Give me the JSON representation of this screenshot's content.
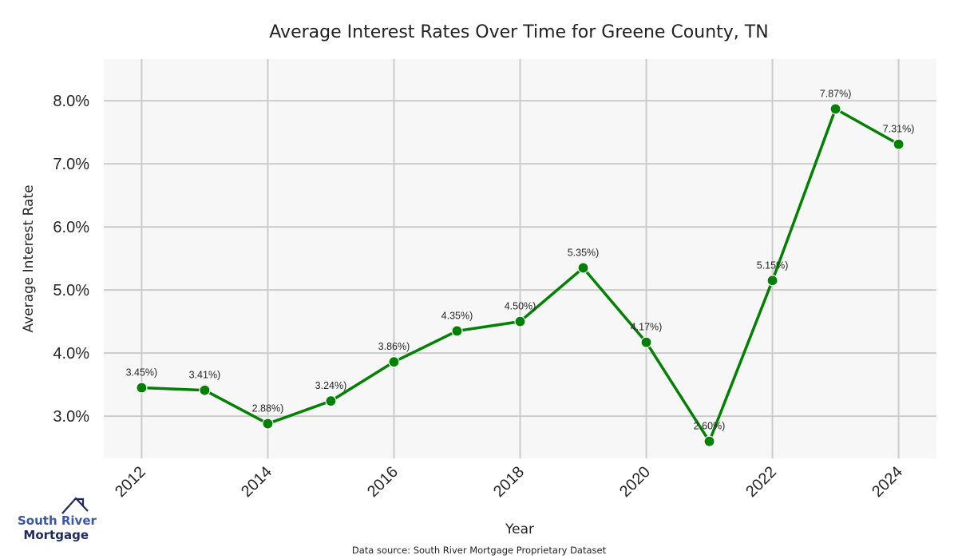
{
  "chart_data": {
    "type": "line",
    "title": "Average Interest Rates Over Time for Greene County, TN",
    "xlabel": "Year",
    "ylabel": "Average Interest Rate",
    "x": [
      2012,
      2013,
      2014,
      2015,
      2016,
      2017,
      2018,
      2019,
      2020,
      2021,
      2022,
      2023,
      2024
    ],
    "series": [
      {
        "name": "Average Interest Rate",
        "color": "#008000",
        "values": [
          3.45,
          3.41,
          2.88,
          3.24,
          3.86,
          4.35,
          4.5,
          5.35,
          4.17,
          2.6,
          5.15,
          7.87,
          7.31
        ],
        "labels": [
          "3.45%)",
          "3.41%)",
          "2.88%)",
          "3.24%)",
          "3.86%)",
          "4.35%)",
          "4.50%)",
          "5.35%)",
          "4.17%)",
          "2.60%)",
          "5.15%)",
          "7.87%)",
          "7.31%)"
        ]
      }
    ],
    "xticks": [
      2012,
      2014,
      2016,
      2018,
      2020,
      2022,
      2024
    ],
    "xtick_labels": [
      "2012",
      "2014",
      "2016",
      "2018",
      "2020",
      "2022",
      "2024"
    ],
    "yticks": [
      3.0,
      4.0,
      5.0,
      6.0,
      7.0,
      8.0
    ],
    "ytick_labels": [
      "3.0%",
      "4.0%",
      "5.0%",
      "6.0%",
      "7.0%",
      "8.0%"
    ],
    "xlim": [
      2011.4,
      2024.6
    ],
    "ylim": [
      2.33,
      8.66
    ],
    "grid": true,
    "source_note": "Data source: South River Mortgage Proprietary Dataset"
  },
  "logo": {
    "line1": "South River",
    "line2": "Mortgage"
  },
  "colors": {
    "plot_bg": "#f7f7f7",
    "grid": "#cccccc",
    "line": "#008000"
  }
}
